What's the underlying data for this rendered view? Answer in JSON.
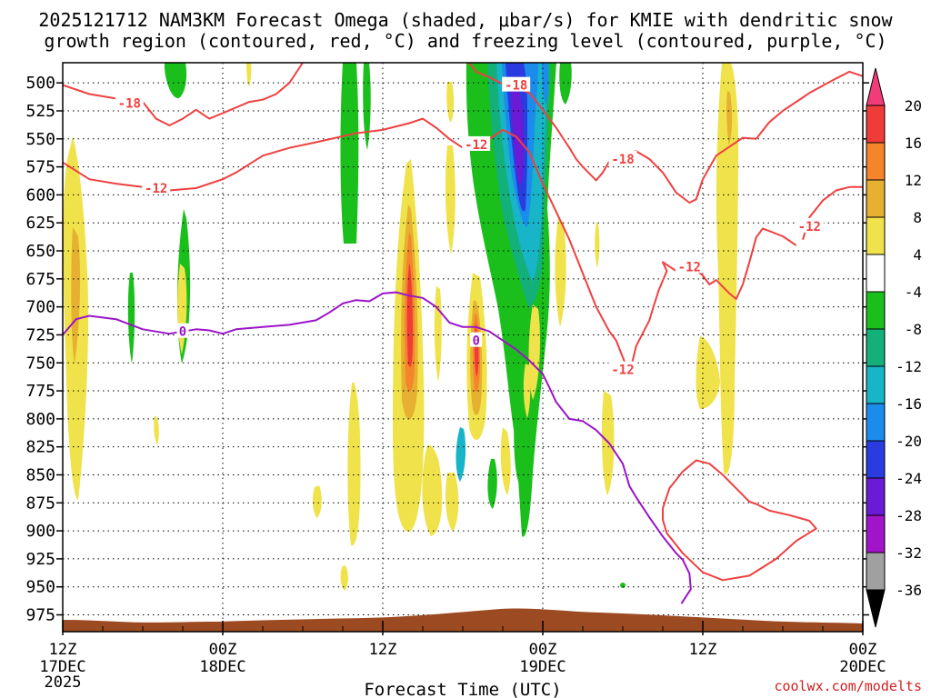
{
  "chart_data": {
    "type": "heatmap",
    "title_line1": "2025121712 NAM3KM Forecast Omega (shaded, μbar/s) for KMIE with dendritic snow",
    "title_line2": "growth region (contoured, red, °C) and freezing level (contoured, purple, °C)",
    "xlabel": "Forecast Time (UTC)",
    "credit": "coolwx.com/modelts",
    "x_range_hours": [
      0,
      60
    ],
    "y_range_hpa": [
      990,
      482
    ],
    "y_ticks": [
      500,
      525,
      550,
      575,
      600,
      625,
      650,
      675,
      700,
      725,
      750,
      775,
      800,
      825,
      850,
      875,
      900,
      925,
      950,
      975
    ],
    "x_ticks": [
      {
        "hour": 0,
        "label": "12Z",
        "sub": "17DEC",
        "sub2": "2025"
      },
      {
        "hour": 12,
        "label": "00Z",
        "sub": "18DEC",
        "sub2": ""
      },
      {
        "hour": 24,
        "label": "12Z",
        "sub": "",
        "sub2": ""
      },
      {
        "hour": 36,
        "label": "00Z",
        "sub": "19DEC",
        "sub2": ""
      },
      {
        "hour": 48,
        "label": "12Z",
        "sub": "",
        "sub2": ""
      },
      {
        "hour": 60,
        "label": "00Z",
        "sub": "20DEC",
        "sub2": ""
      }
    ],
    "colorbar": {
      "labels": [
        "20",
        "16",
        "12",
        "8",
        "4",
        "-4",
        "-8",
        "-12",
        "-16",
        "-20",
        "-24",
        "-28",
        "-32",
        "-36"
      ],
      "colors": [
        "#f23c7a",
        "#ef3c38",
        "#f5852b",
        "#e6b031",
        "#f0e24a",
        "#ffffff",
        "#1bbf1b",
        "#13b07a",
        "#18b4c8",
        "#1c8cec",
        "#2a3ce0",
        "#6a1bd6",
        "#a214c8",
        "#a0a0a0",
        "#000000"
      ]
    },
    "series": [
      {
        "name": "-18 C isotherm (upper)",
        "color": "#ef4040",
        "points": [
          [
            0,
            502
          ],
          [
            2,
            510
          ],
          [
            4,
            514
          ],
          [
            6,
            517
          ],
          [
            7,
            532
          ],
          [
            8,
            538
          ],
          [
            9,
            532
          ],
          [
            10,
            524
          ],
          [
            11,
            532
          ],
          [
            12,
            527
          ],
          [
            14,
            517
          ],
          [
            15,
            515
          ],
          [
            16,
            510
          ],
          [
            17,
            500
          ],
          [
            18,
            482
          ]
        ]
      },
      {
        "name": "-18 C isotherm (middle)",
        "color": "#ef4040",
        "points": [
          [
            30.5,
            482
          ],
          [
            31,
            490
          ],
          [
            32,
            495
          ],
          [
            33,
            501
          ],
          [
            34,
            504
          ],
          [
            35,
            509
          ],
          [
            36,
            524
          ],
          [
            37,
            540
          ],
          [
            38,
            558
          ],
          [
            38.5,
            568
          ],
          [
            39,
            575
          ],
          [
            40,
            587
          ],
          [
            40.5,
            580
          ],
          [
            41,
            570
          ],
          [
            42,
            563
          ],
          [
            43,
            561
          ],
          [
            44,
            568
          ],
          [
            45,
            580
          ],
          [
            46,
            598
          ],
          [
            47,
            607
          ],
          [
            47.5,
            604
          ],
          [
            48,
            586
          ],
          [
            49,
            565
          ],
          [
            50,
            557
          ],
          [
            51,
            549
          ],
          [
            52,
            550
          ],
          [
            53,
            535
          ],
          [
            54,
            525
          ],
          [
            56,
            509
          ],
          [
            58,
            496
          ],
          [
            59,
            490
          ],
          [
            60,
            494
          ]
        ]
      },
      {
        "name": "-12 C isotherm",
        "color": "#ef4040",
        "points": [
          [
            0,
            571
          ],
          [
            2,
            586
          ],
          [
            4,
            590
          ],
          [
            6,
            593
          ],
          [
            8,
            596
          ],
          [
            10,
            594
          ],
          [
            12,
            586
          ],
          [
            13,
            580
          ],
          [
            15,
            565
          ],
          [
            17,
            558
          ],
          [
            19,
            553
          ],
          [
            22,
            545
          ],
          [
            24,
            542
          ],
          [
            26,
            536
          ],
          [
            27,
            532
          ],
          [
            28,
            540
          ],
          [
            29,
            550
          ],
          [
            30,
            558
          ],
          [
            31,
            560
          ],
          [
            32,
            550
          ],
          [
            33,
            542
          ],
          [
            34,
            548
          ],
          [
            35,
            562
          ],
          [
            36,
            590
          ],
          [
            37,
            615
          ],
          [
            38,
            640
          ],
          [
            39,
            670
          ],
          [
            40,
            700
          ],
          [
            41,
            722
          ],
          [
            41.5,
            730
          ],
          [
            42,
            745
          ],
          [
            42.5,
            760
          ],
          [
            43,
            735
          ],
          [
            44,
            712
          ],
          [
            44.3,
            700
          ],
          [
            44.7,
            685
          ],
          [
            45.3,
            668
          ],
          [
            45,
            660
          ],
          [
            46,
            668
          ],
          [
            47,
            662
          ],
          [
            48,
            672
          ],
          [
            48.5,
            680
          ],
          [
            49,
            676
          ],
          [
            50,
            688
          ],
          [
            50.5,
            693
          ],
          [
            51,
            680
          ],
          [
            51.5,
            660
          ],
          [
            52,
            638
          ],
          [
            52.5,
            630
          ],
          [
            54,
            637
          ],
          [
            55,
            645
          ]
        ]
      },
      {
        "name": "-12 C isotherm (right)",
        "color": "#ef4040",
        "points": [
          [
            55.5,
            640
          ],
          [
            56,
            620
          ],
          [
            57,
            605
          ],
          [
            58,
            596
          ],
          [
            59,
            593
          ],
          [
            60,
            593
          ]
        ]
      },
      {
        "name": "-12 C closed contour (lower)",
        "color": "#ef4040",
        "points": [
          [
            45,
            880
          ],
          [
            45.5,
            862
          ],
          [
            46.5,
            847
          ],
          [
            47.5,
            837
          ],
          [
            48.5,
            840
          ],
          [
            49.5,
            850
          ],
          [
            50.5,
            862
          ],
          [
            51.5,
            874
          ],
          [
            52,
            876
          ],
          [
            53,
            882
          ],
          [
            54.5,
            886
          ],
          [
            56,
            891
          ],
          [
            56.5,
            898
          ],
          [
            55,
            909
          ],
          [
            53.5,
            925
          ],
          [
            51.5,
            940
          ],
          [
            49.5,
            944
          ],
          [
            48,
            937
          ],
          [
            46.5,
            920
          ],
          [
            45.3,
            902
          ],
          [
            45,
            890
          ],
          [
            45,
            880
          ]
        ]
      },
      {
        "name": "0 C freezing level",
        "color": "#9b14c8",
        "points": [
          [
            0,
            725
          ],
          [
            1,
            711
          ],
          [
            2,
            708
          ],
          [
            4,
            711
          ],
          [
            6,
            720
          ],
          [
            8,
            724
          ],
          [
            10,
            720
          ],
          [
            11,
            721
          ],
          [
            12,
            724
          ],
          [
            13,
            720
          ],
          [
            15,
            718
          ],
          [
            17,
            716
          ],
          [
            19,
            712
          ],
          [
            20,
            705
          ],
          [
            21,
            697
          ],
          [
            22,
            694
          ],
          [
            23,
            695
          ],
          [
            24,
            688
          ],
          [
            25,
            687
          ],
          [
            26,
            690
          ],
          [
            27,
            692
          ],
          [
            28,
            700
          ],
          [
            29,
            714
          ],
          [
            30,
            718
          ],
          [
            31,
            718
          ],
          [
            32,
            722
          ],
          [
            33,
            730
          ],
          [
            34,
            738
          ],
          [
            35,
            748
          ],
          [
            36,
            760
          ],
          [
            36.5,
            772
          ],
          [
            37,
            785
          ],
          [
            38,
            800
          ],
          [
            39,
            802
          ],
          [
            40,
            810
          ],
          [
            41,
            822
          ],
          [
            42,
            840
          ],
          [
            42.5,
            860
          ],
          [
            43,
            870
          ],
          [
            44,
            888
          ],
          [
            45,
            905
          ],
          [
            46,
            920
          ],
          [
            46.5,
            926
          ],
          [
            47,
            938
          ],
          [
            47.1,
            952
          ],
          [
            46.4,
            965
          ]
        ]
      },
      {
        "name": "0 C freezing level (ground)",
        "color": "#9b14c8",
        "points": [
          [
            9,
            985
          ],
          [
            13,
            983
          ],
          [
            16,
            982
          ]
        ]
      }
    ],
    "contour_labels": [
      {
        "text": "-18",
        "hour": 5,
        "hpa": 518,
        "color": "#ef4040"
      },
      {
        "text": "-18",
        "hour": 34,
        "hpa": 502,
        "color": "#ef4040"
      },
      {
        "text": "-12",
        "hour": 7,
        "hpa": 594,
        "color": "#ef4040"
      },
      {
        "text": "-12",
        "hour": 31,
        "hpa": 555,
        "color": "#ef4040"
      },
      {
        "text": "-18",
        "hour": 42,
        "hpa": 568,
        "color": "#ef4040"
      },
      {
        "text": "-12",
        "hour": 47,
        "hpa": 664,
        "color": "#ef4040"
      },
      {
        "text": "-12",
        "hour": 42,
        "hpa": 756,
        "color": "#ef4040"
      },
      {
        "text": "-12",
        "hour": 56,
        "hpa": 628,
        "color": "#ef4040"
      },
      {
        "text": "0",
        "hour": 9,
        "hpa": 722,
        "color": "#9b14c8"
      },
      {
        "text": "0",
        "hour": 31,
        "hpa": 730,
        "color": "#9b14c8"
      }
    ],
    "omega_shading": [
      {
        "hour": 24.7,
        "hpa_top": 722,
        "hpa_bottom": 800,
        "value": 4
      },
      {
        "hour": 23.8,
        "hpa_top": 730,
        "hpa_bottom": 895,
        "value": 4
      },
      {
        "hour": 26,
        "hpa_top": 660,
        "hpa_bottom": 870,
        "value": 4
      },
      {
        "hour": 30.5,
        "hpa_top": 615,
        "hpa_bottom": 800,
        "value": 4
      },
      {
        "hour": 2,
        "hpa_top": 545,
        "hpa_bottom": 832,
        "value": 4
      },
      {
        "hour": 37.6,
        "hpa_top": 500,
        "hpa_bottom": 600,
        "value": -12
      },
      {
        "hour": 36.8,
        "hpa_top": 500,
        "hpa_bottom": 600,
        "value": -20
      },
      {
        "hour": 34.6,
        "hpa_top": 482,
        "hpa_bottom": 760,
        "value": -8
      },
      {
        "hour": 52.2,
        "hpa_top": 482,
        "hpa_bottom": 620,
        "value": 4
      }
    ]
  },
  "colors": {
    "ground": "#9c4a22",
    "grid": "#000000",
    "credit": "#d12020"
  }
}
